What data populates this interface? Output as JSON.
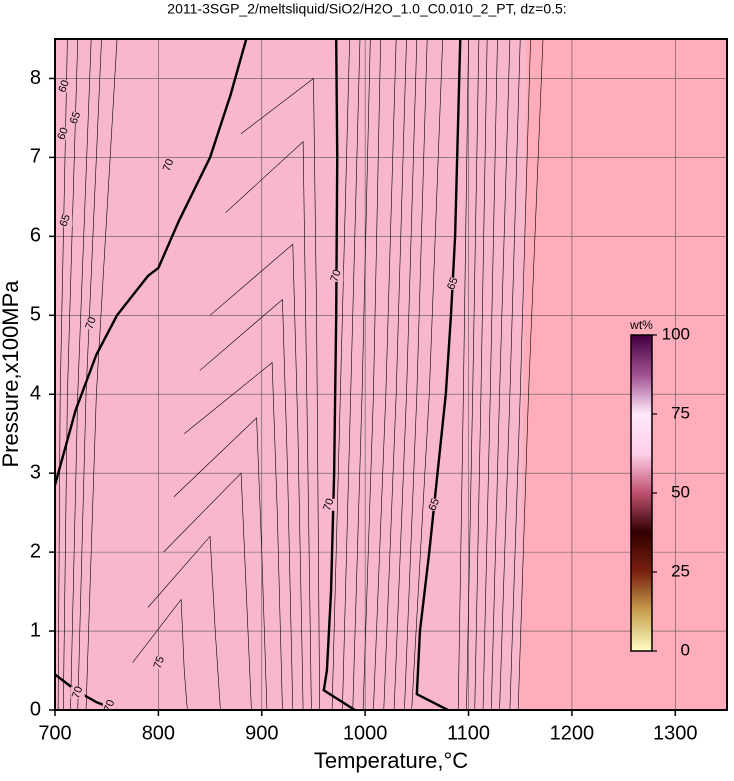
{
  "chart_data": {
    "type": "contour",
    "title": "2011-3SGP_2/meltsliquid/SiO2/H2O_1.0_C0.010_2_PT, dz=0.5:",
    "x_label": "Temperature,°C",
    "y_label": "Pressure,x100MPa",
    "xlim": [
      700,
      1350
    ],
    "ylim": [
      0,
      8.5
    ],
    "xticks": [
      700,
      800,
      900,
      1000,
      1100,
      1200,
      1300
    ],
    "yticks": [
      0,
      1,
      2,
      3,
      4,
      5,
      6,
      7,
      8
    ],
    "grid": true,
    "fill_colors": [
      "#f9b7cd",
      "#ffadbb"
    ],
    "boundary": {
      "x": [
        1150,
        1153,
        1156
      ],
      "y": [
        0,
        4,
        8.5
      ]
    },
    "major_contours": [
      {
        "x": [
          700,
          720,
          740,
          760,
          790,
          800,
          820,
          850,
          870,
          885
        ],
        "y": [
          2.85,
          3.8,
          4.5,
          5.0,
          5.5,
          5.6,
          6.2,
          7.0,
          7.8,
          8.5
        ]
      },
      {
        "x": [
          990,
          960,
          963,
          967,
          970,
          972,
          973,
          972
        ],
        "y": [
          0,
          0.25,
          0.5,
          1.5,
          3,
          5,
          7,
          8.5
        ]
      },
      {
        "x": [
          1080,
          1050,
          1053,
          1062,
          1070,
          1078,
          1083,
          1087,
          1092
        ],
        "y": [
          0,
          0.2,
          1,
          2,
          3,
          4,
          5,
          6,
          8.5
        ]
      },
      {
        "x": [
          700,
          720,
          740,
          760
        ],
        "y": [
          0.45,
          0.25,
          0.1,
          0
        ]
      }
    ],
    "minor_contours": [
      {
        "x": [
          703,
          705,
          712
        ],
        "y": [
          0,
          4,
          8.5
        ]
      },
      {
        "x": [
          708,
          712,
          722
        ],
        "y": [
          0,
          4,
          8.5
        ]
      },
      {
        "x": [
          715,
          722,
          735
        ],
        "y": [
          0,
          4,
          8.5
        ]
      },
      {
        "x": [
          722,
          730,
          745
        ],
        "y": [
          0,
          4,
          8.5
        ]
      },
      {
        "x": [
          730,
          740,
          760
        ],
        "y": [
          0,
          4,
          8.5
        ]
      },
      {
        "x": [
          775,
          822,
          825,
          828
        ],
        "y": [
          0.6,
          1.4,
          0.5,
          0
        ]
      },
      {
        "x": [
          790,
          850,
          855,
          860
        ],
        "y": [
          1.3,
          2.2,
          1.0,
          0
        ]
      },
      {
        "x": [
          805,
          880,
          885,
          890
        ],
        "y": [
          2.0,
          3.0,
          1.5,
          0
        ]
      },
      {
        "x": [
          815,
          895,
          900,
          905
        ],
        "y": [
          2.7,
          3.7,
          2.0,
          0
        ]
      },
      {
        "x": [
          825,
          910,
          915,
          920
        ],
        "y": [
          3.5,
          4.4,
          2.5,
          0
        ]
      },
      {
        "x": [
          840,
          920,
          925,
          930
        ],
        "y": [
          4.3,
          5.2,
          3.0,
          0
        ]
      },
      {
        "x": [
          850,
          930,
          935,
          940
        ],
        "y": [
          5.0,
          5.9,
          3.5,
          0
        ]
      },
      {
        "x": [
          865,
          940,
          943,
          948
        ],
        "y": [
          6.3,
          7.2,
          4.5,
          0
        ]
      },
      {
        "x": [
          880,
          950,
          953,
          956
        ],
        "y": [
          7.3,
          8.0,
          5.0,
          0
        ]
      },
      {
        "x": [
          968,
          976,
          985
        ],
        "y": [
          0,
          4,
          8.5
        ]
      },
      {
        "x": [
          978,
          986,
          995
        ],
        "y": [
          0,
          4,
          8.5
        ]
      },
      {
        "x": [
          988,
          997,
          1005
        ],
        "y": [
          0,
          4,
          8.5
        ]
      },
      {
        "x": [
          998,
          1008,
          1015
        ],
        "y": [
          0,
          4,
          8.5
        ]
      },
      {
        "x": [
          1008,
          1020,
          1030
        ],
        "y": [
          0,
          4,
          8.5
        ]
      },
      {
        "x": [
          1018,
          1030,
          1040
        ],
        "y": [
          0,
          4,
          8.5
        ]
      },
      {
        "x": [
          1028,
          1040,
          1050
        ],
        "y": [
          0,
          4,
          8.5
        ]
      },
      {
        "x": [
          1038,
          1050,
          1060
        ],
        "y": [
          0,
          4,
          8.5
        ]
      },
      {
        "x": [
          1045,
          1062,
          1075
        ],
        "y": [
          0,
          4,
          8.5
        ]
      },
      {
        "x": [
          1090,
          1095,
          1100
        ],
        "y": [
          0,
          4,
          8.5
        ]
      },
      {
        "x": [
          1098,
          1104,
          1110
        ],
        "y": [
          0,
          4,
          8.5
        ]
      },
      {
        "x": [
          1106,
          1112,
          1118
        ],
        "y": [
          0,
          4,
          8.5
        ]
      },
      {
        "x": [
          1114,
          1121,
          1128
        ],
        "y": [
          0,
          4,
          8.5
        ]
      },
      {
        "x": [
          1122,
          1130,
          1140
        ],
        "y": [
          0,
          4,
          8.5
        ]
      },
      {
        "x": [
          1130,
          1140,
          1150
        ],
        "y": [
          0,
          4,
          8.5
        ]
      },
      {
        "x": [
          1140,
          1150,
          1160
        ],
        "y": [
          0,
          4,
          8.5
        ]
      },
      {
        "x": [
          1148,
          1158,
          1172
        ],
        "y": [
          0,
          4,
          8.5
        ]
      }
    ],
    "contour_labels": [
      {
        "value": 60,
        "x": 709,
        "y": 7.9
      },
      {
        "value": 60,
        "x": 708,
        "y": 7.3
      },
      {
        "value": 65,
        "x": 720,
        "y": 7.5
      },
      {
        "value": 65,
        "x": 710,
        "y": 6.2
      },
      {
        "value": 70,
        "x": 810,
        "y": 6.9
      },
      {
        "value": 70,
        "x": 735,
        "y": 4.9
      },
      {
        "value": 70,
        "x": 972,
        "y": 5.5
      },
      {
        "value": 70,
        "x": 965,
        "y": 2.6
      },
      {
        "value": 65,
        "x": 1085,
        "y": 5.4
      },
      {
        "value": 65,
        "x": 1067,
        "y": 2.6
      },
      {
        "value": 75,
        "x": 801,
        "y": 0.6
      },
      {
        "value": 70,
        "x": 722,
        "y": 0.22
      },
      {
        "value": 70,
        "x": 753,
        "y": 0.05
      }
    ],
    "colorbar": {
      "label": "wt%",
      "lim": [
        0,
        100
      ],
      "ticks": [
        0,
        25,
        50,
        75,
        100
      ],
      "colors": [
        "#ffffc8",
        "#c8a050",
        "#7a2010",
        "#300000",
        "#c05070",
        "#ffd0e8",
        "#ffe8f8",
        "#a05090",
        "#400040"
      ]
    }
  }
}
